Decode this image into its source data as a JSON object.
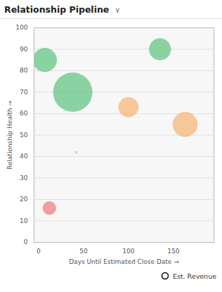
{
  "chart_data": {
    "type": "scatter",
    "title": "Relationship Pipeline",
    "annotations": [
      "∨"
    ],
    "xlabel": "Days Until Estimated Close Date",
    "ylabel": "Relationship Health",
    "xlim": [
      -5,
      195
    ],
    "ylim": [
      0,
      100
    ],
    "xticks": [
      0,
      50,
      100,
      150
    ],
    "yticks": [
      0,
      10,
      20,
      30,
      40,
      50,
      60,
      70,
      80,
      90,
      100
    ],
    "grid": "y",
    "legend": "lower right",
    "x": [
      7,
      38,
      135,
      100,
      163,
      42,
      12
    ],
    "series": [
      {
        "name": "Est. Revenue",
        "values": [
          85,
          70,
          90,
          63,
          55,
          42,
          16
        ],
        "sizes": [
          600,
          1600,
          500,
          420,
          650,
          8,
          190
        ],
        "colors": [
          "#67c587",
          "#67c587",
          "#67c587",
          "#f5b87a",
          "#f5b87a",
          "#f5b87a",
          "#f08080"
        ]
      }
    ]
  }
}
